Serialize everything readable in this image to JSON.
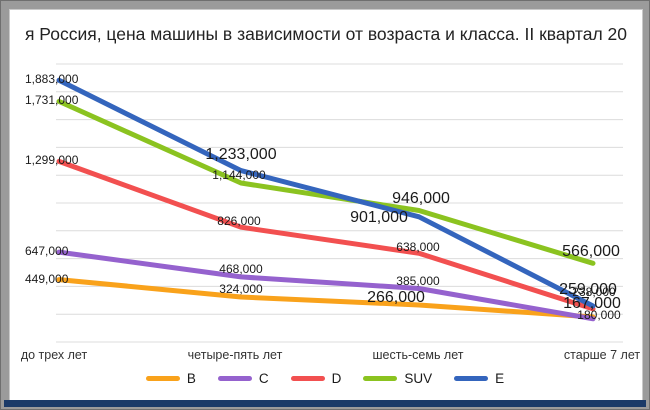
{
  "title": "я Россия, цена машины в зависимости от возраста и класса. II квартал 20",
  "chart_data": {
    "type": "line",
    "categories": [
      "до трех лет",
      "четыре-пять лет",
      "шесть-семь лет",
      "старше 7 лет"
    ],
    "series": [
      {
        "name": "B",
        "color": "#F9A21B",
        "values": [
          449000,
          324000,
          266000,
          180000
        ]
      },
      {
        "name": "C",
        "color": "#9562CE",
        "values": [
          647000,
          468000,
          385000,
          167000
        ]
      },
      {
        "name": "D",
        "color": "#F25050",
        "values": [
          1299000,
          826000,
          638000,
          238000
        ]
      },
      {
        "name": "SUV",
        "color": "#8BC320",
        "values": [
          1731000,
          1144000,
          946000,
          566000
        ]
      },
      {
        "name": "E",
        "color": "#3465BD",
        "values": [
          1883000,
          1233000,
          901000,
          259000
        ]
      }
    ],
    "ylim": [
      0,
      2000000
    ],
    "gridline_step": 200000,
    "grid": true,
    "legend_position": "bottom",
    "data_labels": true,
    "label_format": "#,##0"
  },
  "colors": {
    "gridline": "#DCDCDC",
    "frame": "#9B9B9B",
    "taskbar_strip": "#1A3A68",
    "label_text": "#1B1B1B",
    "axis_text": "#333333"
  }
}
